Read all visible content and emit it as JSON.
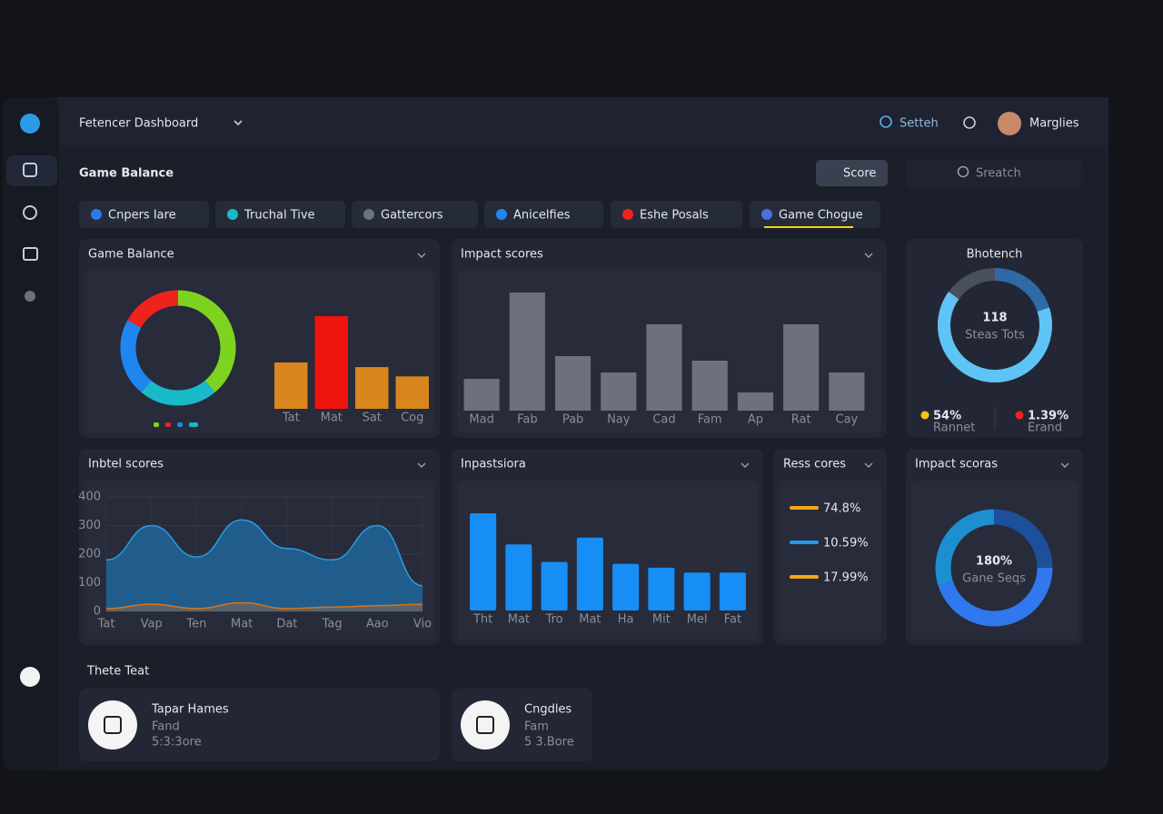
{
  "header": {
    "app_title": "Fetencer Dashboard",
    "search": "Setteh",
    "user": "Marglies"
  },
  "page_title": "Game Balance",
  "score_button": "Score",
  "search_placeholder": "Sreatch",
  "tabs": [
    "Cnpers Iare",
    "Truchal Tive",
    "Gattercors",
    "Anicelfies",
    "Eshe Posals",
    "Game Chogue"
  ],
  "panels": [
    {
      "title": "Game Balance",
      "donut": {
        "type": "donut",
        "values": [
          39,
          22,
          22,
          17
        ],
        "colors": [
          "#7ed321",
          "#19b9c9",
          "#1f86ee",
          "#f0221c"
        ]
      },
      "bars": {
        "type": "bar",
        "categories": [
          "Tat",
          "Mat",
          "Sat",
          "Cog"
        ],
        "values": [
          50,
          100,
          45,
          35
        ],
        "colors": [
          "#d9861e",
          "#f0140f",
          "#d9861e",
          "#d9861e"
        ]
      }
    },
    {
      "title": "Impact scores",
      "bars": {
        "type": "bar",
        "categories": [
          "Mad",
          "Fab",
          "Pab",
          "Nay",
          "Cad",
          "Fam",
          "Ap",
          "Rat",
          "Cay"
        ],
        "values": [
          35,
          130,
          60,
          42,
          95,
          55,
          20,
          95,
          42
        ],
        "colors": [
          "#6d717c",
          "#6d717c",
          "#6d717c",
          "#6d717c",
          "#6d717c",
          "#6d717c",
          "#6d717c",
          "#6d717c",
          "#6d717c"
        ]
      }
    },
    {
      "title": "Bhotench",
      "donut": {
        "type": "donut",
        "values": [
          20,
          65,
          15
        ],
        "colors": [
          "#2f6aa6",
          "#5ec4f5",
          "#4a4f5c"
        ]
      },
      "center_value": "118",
      "center_label": "Steas Tots",
      "stats": [
        {
          "value": "54%",
          "label": "Rannet",
          "color": "#f2c21b"
        },
        {
          "value": "1.39%",
          "label": "Erand",
          "color": "#f0221c"
        }
      ]
    },
    {
      "title": "Inbtel scores",
      "area": {
        "type": "area",
        "categories": [
          "Tat",
          "Vap",
          "Ten",
          "Mat",
          "Dat",
          "Tag",
          "Aao",
          "Vio"
        ],
        "ylim": [
          0,
          400
        ],
        "yticks": [
          0,
          100,
          200,
          300,
          400
        ],
        "series": [
          {
            "color": "#1f6fa8",
            "values": [
              180,
              300,
              190,
              320,
              220,
              180,
              300,
              90
            ]
          },
          {
            "color": "#d9731e",
            "values": [
              10,
              25,
              10,
              30,
              10,
              15,
              20,
              25
            ]
          }
        ]
      }
    },
    {
      "title": "Inpastsiora",
      "bars": {
        "type": "bar",
        "categories": [
          "Tht",
          "Mat",
          "Tro",
          "Mat",
          "Ha",
          "Mit",
          "Mel",
          "Fat"
        ],
        "values": [
          100,
          68,
          50,
          75,
          48,
          44,
          39,
          39
        ],
        "colors": [
          "#168ef5",
          "#168ef5",
          "#168ef5",
          "#168ef5",
          "#168ef5",
          "#168ef5",
          "#168ef5",
          "#168ef5"
        ]
      }
    },
    {
      "title": "Ress cores",
      "legend": [
        {
          "value": "74.8%",
          "color": "#f2a81b"
        },
        {
          "value": "10.59%",
          "color": "#1b9cf2"
        },
        {
          "value": "17.99%",
          "color": "#f2a81b"
        }
      ]
    },
    {
      "title": "Impact scoras",
      "donut": {
        "type": "donut",
        "values": [
          25,
          45,
          30
        ],
        "colors": [
          "#1d4f9a",
          "#2f78ee",
          "#1c8fd0"
        ]
      },
      "center_value": "180%",
      "center_label": "Gane Seqs"
    }
  ],
  "section_title": "Thete Teat",
  "cards": [
    {
      "title": "Tapar Hames",
      "line1": "Fand",
      "line2": "5:3:3ore"
    },
    {
      "title": "Cngdles",
      "line1": "Fam",
      "line2": "5 3.Bore"
    }
  ]
}
